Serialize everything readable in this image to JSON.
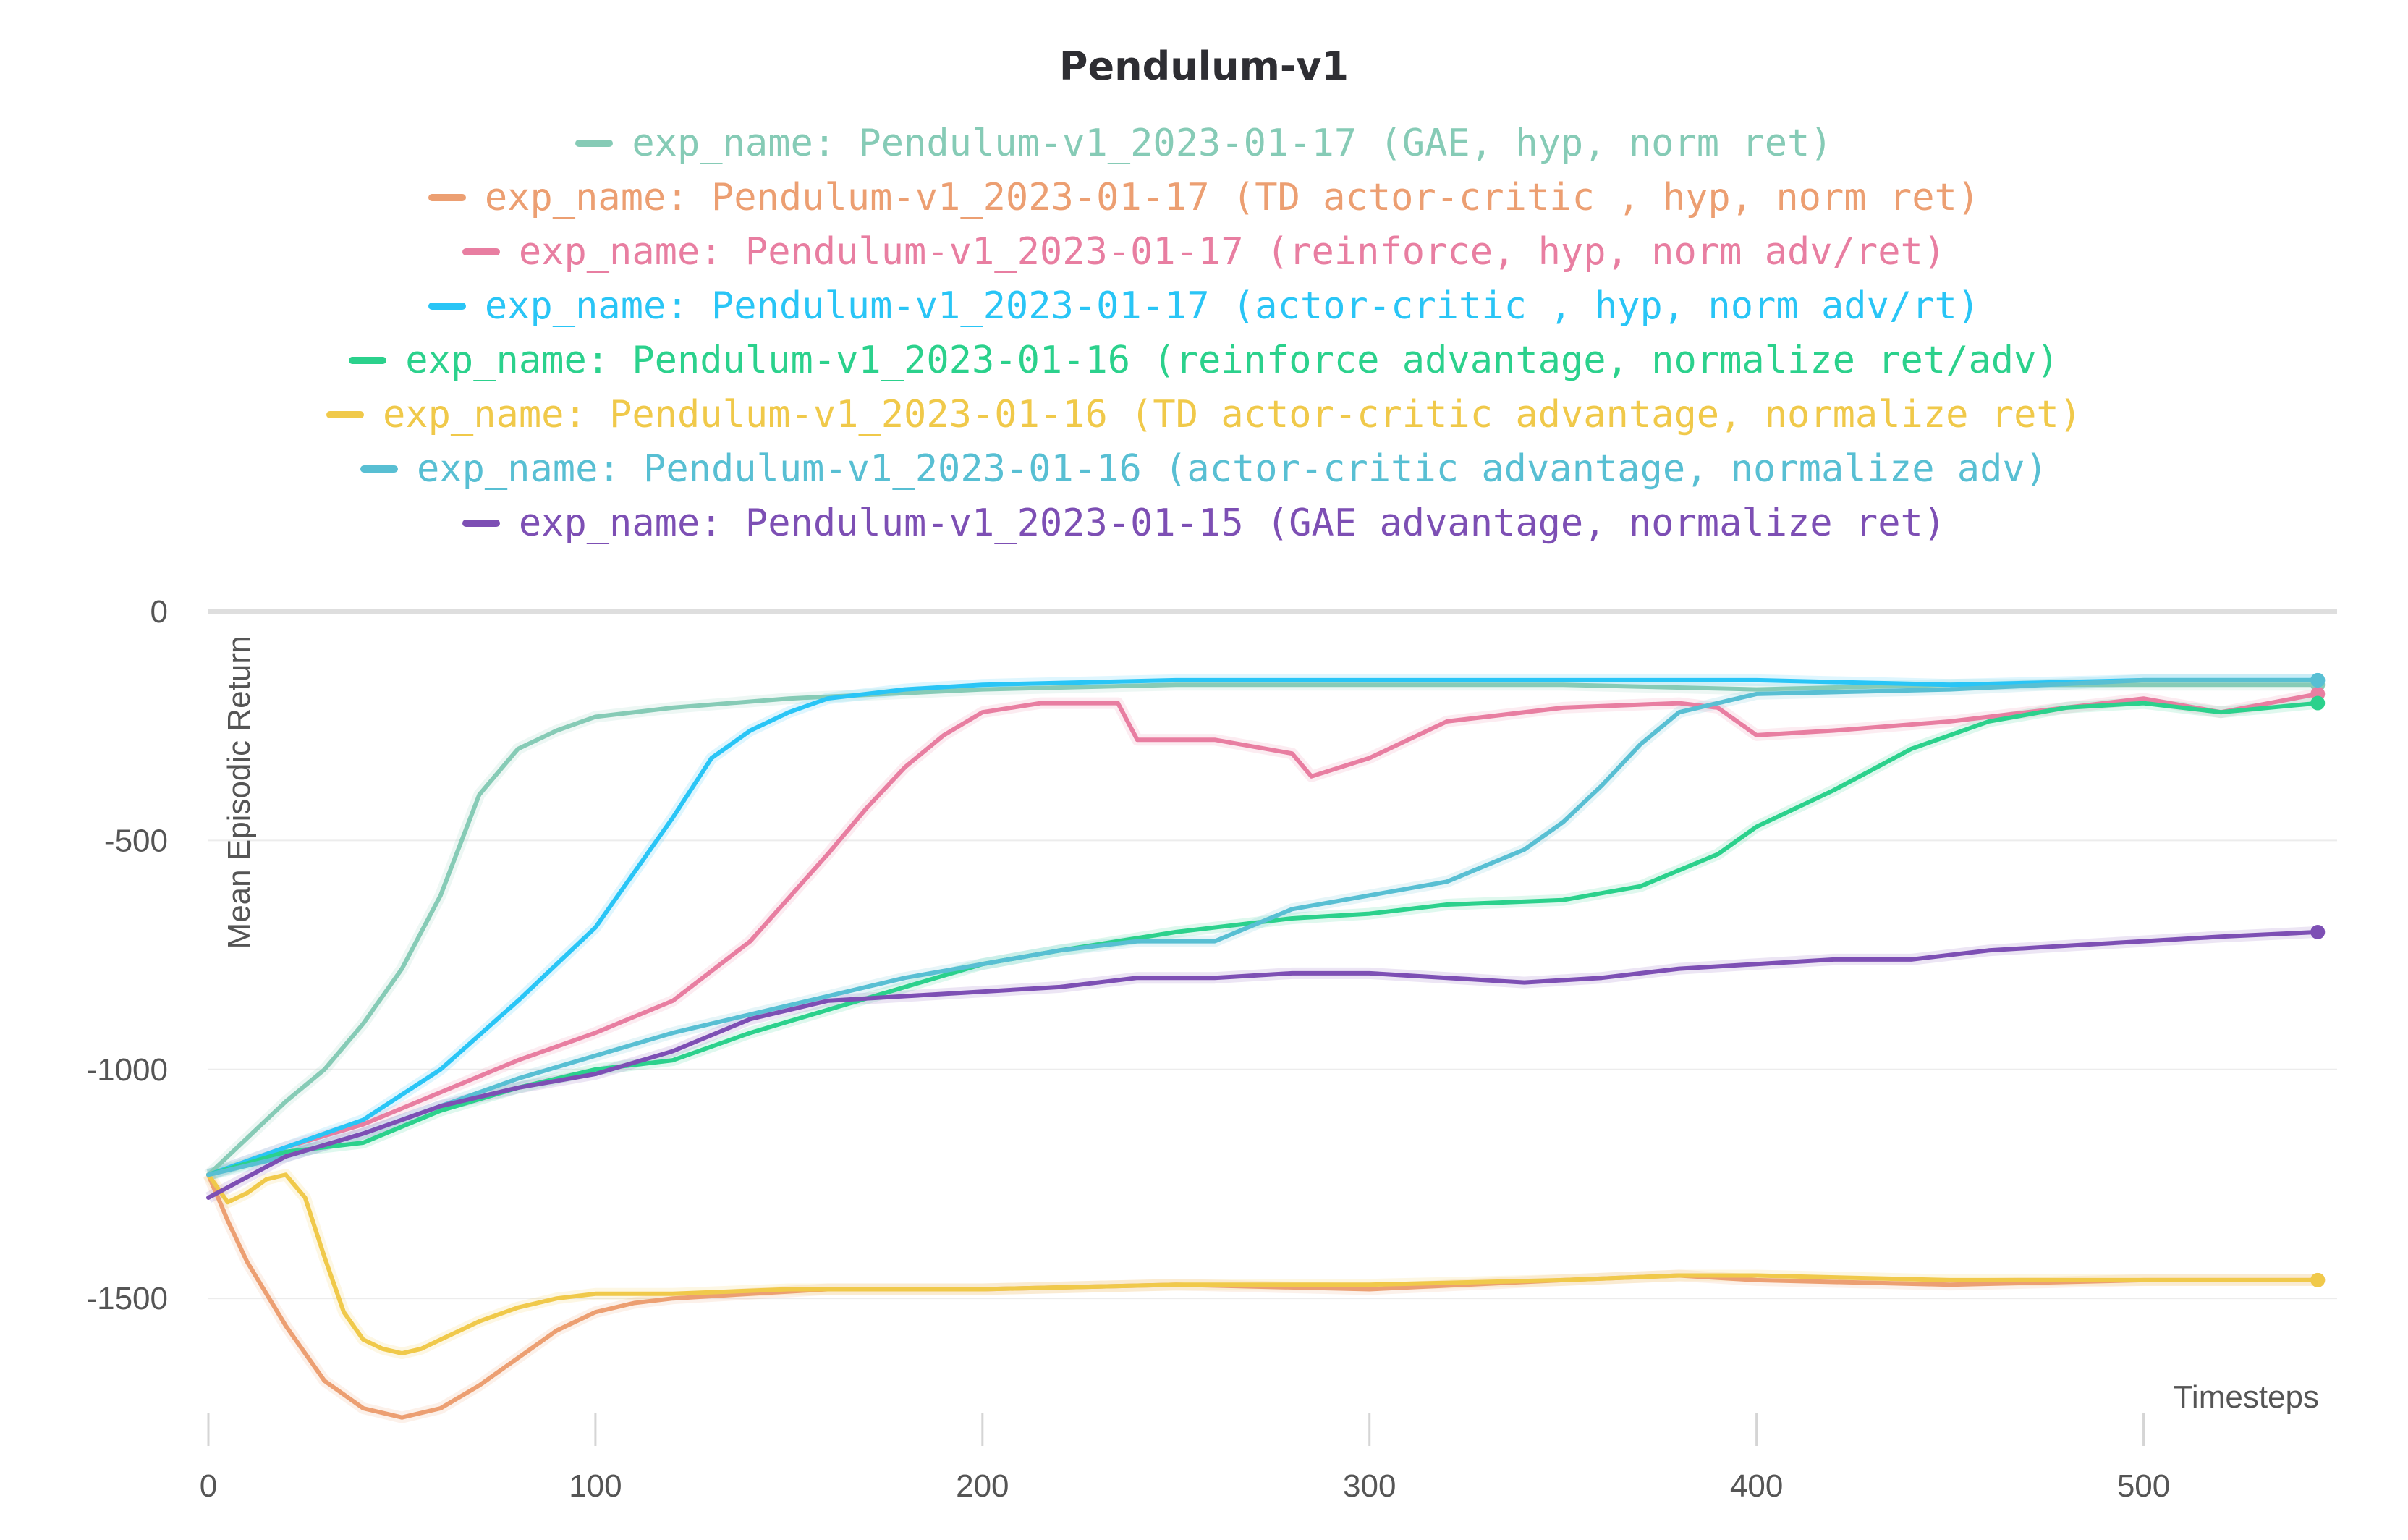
{
  "chart_data": {
    "type": "line",
    "title": "Pendulum-v1",
    "xlabel": "Timesteps",
    "ylabel": "Mean Episodic Return",
    "xlim": [
      0,
      550
    ],
    "ylim": [
      -1800,
      0
    ],
    "xticks": [
      0,
      100,
      200,
      300,
      400,
      500
    ],
    "yticks": [
      0,
      -500,
      -1000,
      -1500
    ],
    "xtick_labels": [
      "0",
      "100",
      "200",
      "300",
      "400",
      "500"
    ],
    "ytick_labels": [
      "0",
      "-500",
      "-1000",
      "-1500"
    ],
    "grid": true,
    "legend_position": "top-center",
    "series": [
      {
        "name": "exp_name: Pendulum-v1_2023-01-17 (GAE, hyp, norm ret)",
        "color": "#86cbb6",
        "x": [
          0,
          10,
          20,
          30,
          40,
          50,
          60,
          70,
          80,
          90,
          100,
          120,
          150,
          200,
          250,
          300,
          350,
          400,
          450,
          500,
          545
        ],
        "y": [
          -1230,
          -1150,
          -1070,
          -1000,
          -900,
          -780,
          -620,
          -400,
          -300,
          -260,
          -230,
          -210,
          -190,
          -170,
          -160,
          -160,
          -160,
          -170,
          -160,
          -160,
          -160
        ]
      },
      {
        "name": "exp_name: Pendulum-v1_2023-01-17 (TD actor-critic , hyp, norm ret)",
        "color": "#ec9f72",
        "x": [
          0,
          5,
          10,
          20,
          30,
          40,
          50,
          60,
          70,
          80,
          90,
          100,
          110,
          120,
          140,
          160,
          200,
          250,
          300,
          350,
          380,
          400,
          450,
          500,
          545
        ],
        "y": [
          -1230,
          -1330,
          -1420,
          -1560,
          -1680,
          -1740,
          -1760,
          -1740,
          -1690,
          -1630,
          -1570,
          -1530,
          -1510,
          -1500,
          -1490,
          -1480,
          -1480,
          -1470,
          -1480,
          -1460,
          -1450,
          -1460,
          -1470,
          -1460,
          -1460
        ]
      },
      {
        "name": "exp_name: Pendulum-v1_2023-01-17 (reinforce, hyp, norm adv/ret)",
        "color": "#e87ea1",
        "x": [
          0,
          20,
          40,
          60,
          80,
          100,
          120,
          140,
          160,
          170,
          180,
          190,
          200,
          215,
          235,
          240,
          260,
          280,
          285,
          300,
          320,
          350,
          380,
          390,
          400,
          420,
          450,
          480,
          500,
          520,
          545
        ],
        "y": [
          -1230,
          -1170,
          -1120,
          -1050,
          -980,
          -920,
          -850,
          -720,
          -530,
          -430,
          -340,
          -270,
          -220,
          -200,
          -200,
          -280,
          -280,
          -310,
          -360,
          -320,
          -240,
          -210,
          -200,
          -210,
          -270,
          -260,
          -240,
          -210,
          -190,
          -220,
          -180
        ]
      },
      {
        "name": "exp_name: Pendulum-v1_2023-01-17 (actor-critic , hyp, norm adv/rt)",
        "color": "#29c5f6",
        "x": [
          0,
          20,
          40,
          60,
          80,
          100,
          110,
          120,
          130,
          140,
          150,
          160,
          180,
          200,
          250,
          300,
          350,
          400,
          450,
          500,
          545
        ],
        "y": [
          -1230,
          -1170,
          -1110,
          -1000,
          -850,
          -690,
          -570,
          -450,
          -320,
          -260,
          -220,
          -190,
          -170,
          -160,
          -150,
          -150,
          -150,
          -150,
          -160,
          -150,
          -150
        ]
      },
      {
        "name": "exp_name: Pendulum-v1_2023-01-16 (reinforce advantage, normalize ret/adv)",
        "color": "#2bd18c",
        "x": [
          0,
          20,
          40,
          60,
          80,
          100,
          120,
          140,
          160,
          180,
          200,
          220,
          250,
          280,
          300,
          320,
          350,
          370,
          390,
          400,
          420,
          440,
          460,
          480,
          500,
          520,
          545
        ],
        "y": [
          -1230,
          -1180,
          -1160,
          -1090,
          -1040,
          -1000,
          -980,
          -920,
          -870,
          -820,
          -770,
          -740,
          -700,
          -670,
          -660,
          -640,
          -630,
          -600,
          -530,
          -470,
          -390,
          -300,
          -240,
          -210,
          -200,
          -220,
          -200
        ]
      },
      {
        "name": "exp_name: Pendulum-v1_2023-01-16 (TD actor-critic advantage, normalize ret)",
        "color": "#f0c94a",
        "x": [
          0,
          5,
          10,
          15,
          20,
          25,
          30,
          35,
          40,
          45,
          50,
          55,
          60,
          70,
          80,
          90,
          100,
          120,
          150,
          200,
          250,
          300,
          350,
          380,
          400,
          450,
          500,
          545
        ],
        "y": [
          -1230,
          -1290,
          -1270,
          -1240,
          -1230,
          -1280,
          -1410,
          -1530,
          -1590,
          -1610,
          -1620,
          -1610,
          -1590,
          -1550,
          -1520,
          -1500,
          -1490,
          -1490,
          -1480,
          -1480,
          -1470,
          -1470,
          -1460,
          -1450,
          -1450,
          -1460,
          -1460,
          -1460
        ]
      },
      {
        "name": "exp_name: Pendulum-v1_2023-01-16 (actor-critic advantage, normalize adv)",
        "color": "#58bfd3",
        "x": [
          0,
          20,
          40,
          60,
          80,
          100,
          120,
          140,
          160,
          180,
          200,
          220,
          240,
          260,
          280,
          300,
          320,
          340,
          350,
          360,
          370,
          380,
          400,
          450,
          500,
          545
        ],
        "y": [
          -1230,
          -1190,
          -1140,
          -1080,
          -1020,
          -970,
          -920,
          -880,
          -840,
          -800,
          -770,
          -740,
          -720,
          -720,
          -650,
          -620,
          -590,
          -520,
          -460,
          -380,
          -290,
          -220,
          -180,
          -170,
          -150,
          -150
        ]
      },
      {
        "name": "exp_name: Pendulum-v1_2023-01-15 (GAE advantage, normalize ret)",
        "color": "#7d4fb4",
        "x": [
          0,
          20,
          40,
          60,
          80,
          100,
          120,
          140,
          160,
          180,
          200,
          220,
          240,
          260,
          280,
          300,
          320,
          340,
          360,
          380,
          400,
          420,
          440,
          460,
          480,
          500,
          520,
          545
        ],
        "y": [
          -1280,
          -1190,
          -1140,
          -1080,
          -1040,
          -1010,
          -960,
          -890,
          -850,
          -840,
          -830,
          -820,
          -800,
          -800,
          -790,
          -790,
          -800,
          -810,
          -800,
          -780,
          -770,
          -760,
          -760,
          -740,
          -730,
          -720,
          -710,
          -700
        ]
      }
    ]
  }
}
